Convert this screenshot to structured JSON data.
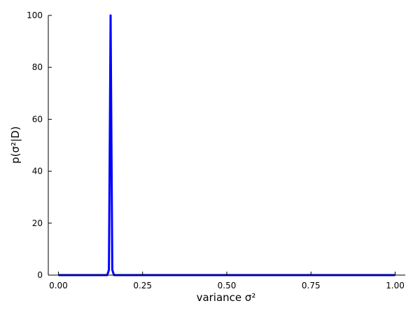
{
  "chart_data": {
    "type": "line",
    "title": "",
    "xlabel": "variance σ²",
    "ylabel": "p(σ²|D)",
    "xlim": [
      -0.03,
      1.03
    ],
    "ylim": [
      0,
      100
    ],
    "grid": false,
    "legend": "none",
    "series": [
      {
        "color": "#0000ff",
        "x": [
          0.0,
          0.145,
          0.15,
          0.153,
          0.155,
          0.157,
          0.16,
          0.165,
          0.2,
          0.5,
          1.0
        ],
        "y": [
          0,
          0,
          2,
          60,
          100,
          60,
          2,
          0,
          0,
          0,
          0
        ]
      }
    ],
    "xticks": [
      {
        "value": 0.0,
        "label": "0.00"
      },
      {
        "value": 0.25,
        "label": "0.25"
      },
      {
        "value": 0.5,
        "label": "0.50"
      },
      {
        "value": 0.75,
        "label": "0.75"
      },
      {
        "value": 1.0,
        "label": "1.00"
      }
    ],
    "yticks": [
      {
        "value": 0,
        "label": "0"
      },
      {
        "value": 20,
        "label": "20"
      },
      {
        "value": 40,
        "label": "40"
      },
      {
        "value": 60,
        "label": "60"
      },
      {
        "value": 80,
        "label": "80"
      },
      {
        "value": 100,
        "label": "100"
      }
    ]
  }
}
